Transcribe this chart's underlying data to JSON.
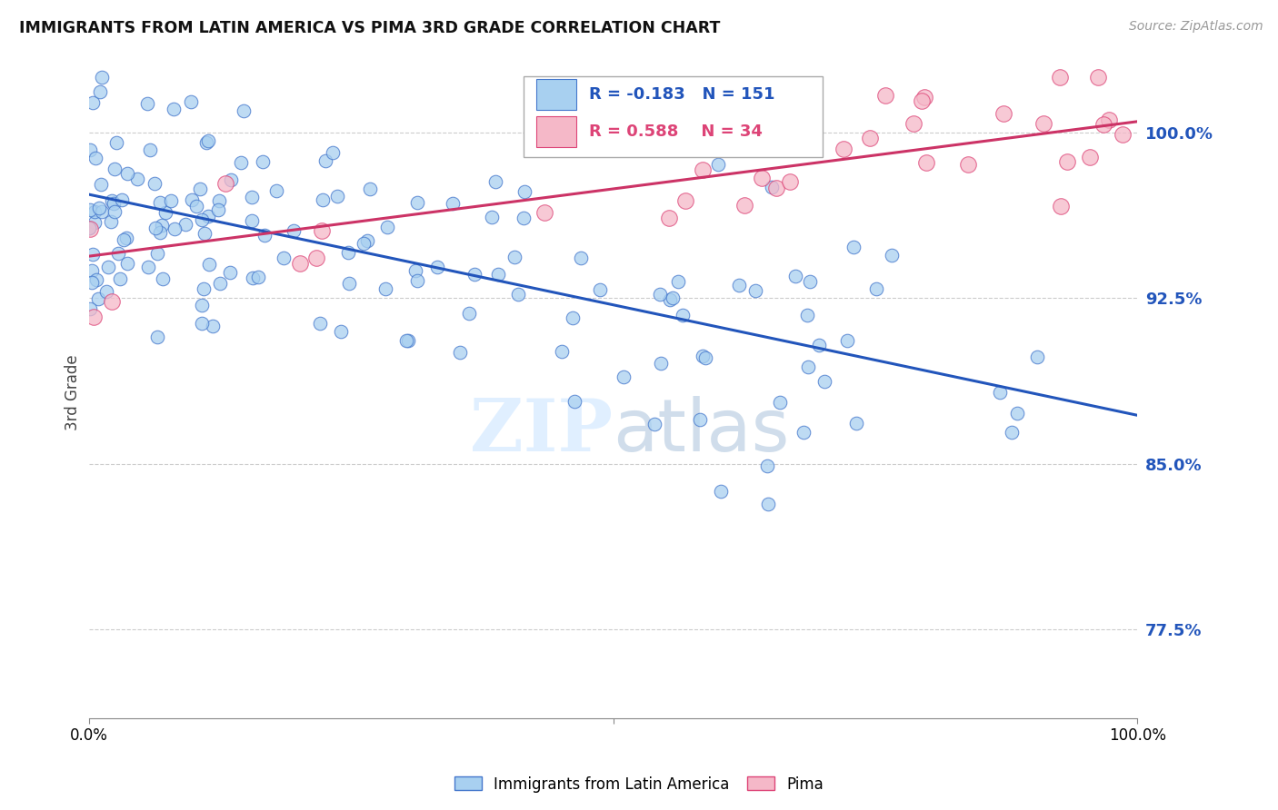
{
  "title": "IMMIGRANTS FROM LATIN AMERICA VS PIMA 3RD GRADE CORRELATION CHART",
  "source": "Source: ZipAtlas.com",
  "ylabel": "3rd Grade",
  "legend_blue_label": "Immigrants from Latin America",
  "legend_pink_label": "Pima",
  "R_blue": -0.183,
  "N_blue": 151,
  "R_pink": 0.588,
  "N_pink": 34,
  "blue_color": "#A8D0F0",
  "blue_edge_color": "#4477CC",
  "pink_color": "#F5B8C8",
  "pink_edge_color": "#DD4477",
  "blue_line_color": "#2255BB",
  "pink_line_color": "#CC3366",
  "xmin": 0.0,
  "xmax": 1.0,
  "ymin": 0.735,
  "ymax": 1.03,
  "yticks": [
    0.775,
    0.85,
    0.925,
    1.0
  ],
  "ytick_labels": [
    "77.5%",
    "85.0%",
    "92.5%",
    "100.0%"
  ],
  "background_color": "#ffffff",
  "grid_color": "#cccccc",
  "watermark_zip": "ZIP",
  "watermark_atlas": "atlas",
  "blue_trend_start_y": 0.972,
  "blue_trend_end_y": 0.872,
  "pink_trend_start_y": 0.944,
  "pink_trend_end_y": 1.005,
  "seed_blue": 42,
  "seed_pink": 99
}
